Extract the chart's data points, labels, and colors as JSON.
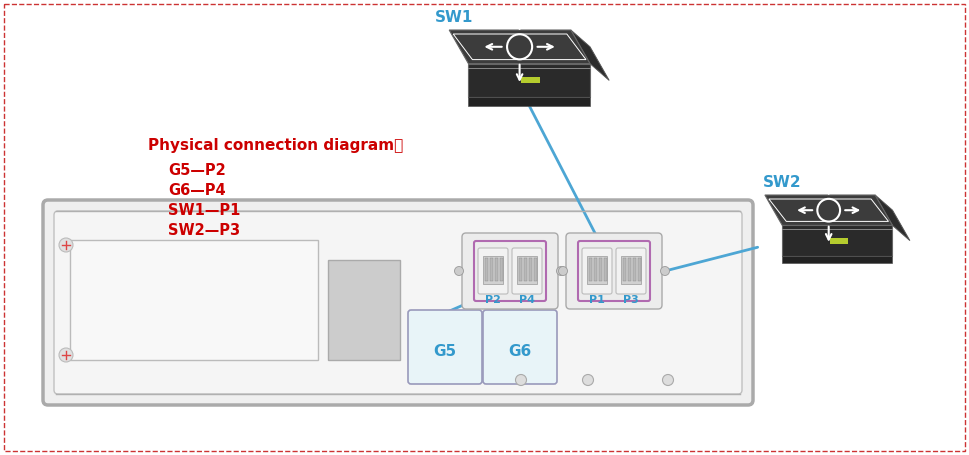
{
  "bg_color": "#ffffff",
  "outer_border_color": "#cc3333",
  "text_color": "#cc0000",
  "sw_label_color": "#3399cc",
  "port_label_color": "#3399cc",
  "arrow_color": "#4da6d4",
  "green_led": "#b5cc2e",
  "sw1_label": "SW1",
  "sw2_label": "SW2",
  "title_text": "Physical connection diagram：",
  "legend": [
    "G5—P2",
    "G6—P4",
    "SW1—P1",
    "SW2—P3"
  ],
  "switch_dark": "#3c3c3c",
  "switch_darker": "#2a2a2a",
  "switch_mid": "#484848",
  "switch_edge": "#888888",
  "switch_top": "#404040",
  "white": "#ffffff",
  "port_purple": "#b06ab0",
  "port_fill": "#f0f0f0",
  "port_inner": "#d8d8d8",
  "device_fill": "#f2f2f2",
  "device_border": "#999999",
  "sfp_fill": "#e8f4f8",
  "sfp_border": "#aaaacc",
  "mid_fill": "#cccccc",
  "screw_color": "#dd4444"
}
